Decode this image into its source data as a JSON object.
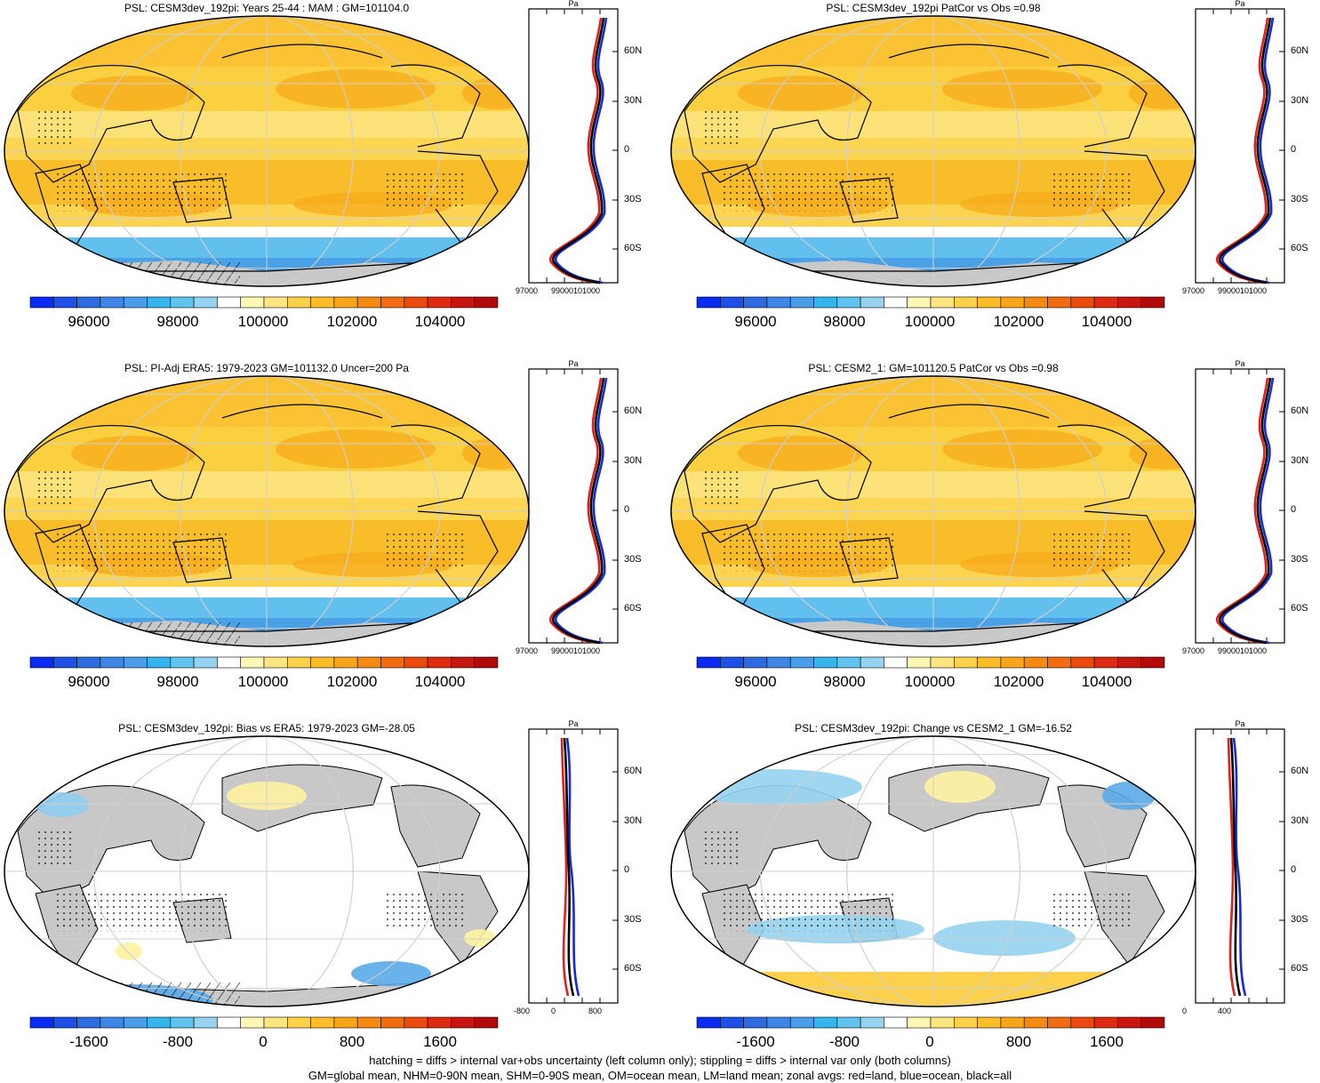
{
  "panels": [
    {
      "title": "PSL: CESM3dev_192pi: Years 25-44 : MAM : GM=101104.0",
      "kind": "abs",
      "hatch": true,
      "zonal_xticks": [
        "97000",
        "99000101000"
      ],
      "zonal_unit": "Pa"
    },
    {
      "title": "PSL: CESM3dev_192pi PatCor vs Obs =0.98",
      "kind": "abs",
      "hatch": false,
      "zonal_xticks": [
        "97000",
        "99000101000"
      ],
      "zonal_unit": "Pa"
    },
    {
      "title": "PSL: PI-Adj ERA5: 1979-2023 GM=101132.0 Uncer=200 Pa",
      "kind": "abs",
      "hatch": true,
      "zonal_xticks": [
        "97000",
        "99000101000"
      ],
      "zonal_unit": "Pa"
    },
    {
      "title": "PSL: CESM2_1: GM=101120.5 PatCor vs Obs =0.98",
      "kind": "abs",
      "hatch": false,
      "zonal_xticks": [
        "97000",
        "99000101000"
      ],
      "zonal_unit": "Pa"
    },
    {
      "title": "PSL: CESM3dev_192pi: Bias vs ERA5: 1979-2023 GM=-28.05",
      "kind": "bias",
      "hatch": true,
      "zonal_xticks": [
        "-800",
        "0",
        "800"
      ],
      "zonal_unit": "Pa"
    },
    {
      "title": "PSL: CESM3dev_192pi: Change vs CESM2_1 GM=-16.52",
      "kind": "change",
      "hatch": false,
      "zonal_xticks": [
        "0",
        "400"
      ],
      "zonal_unit": "Pa"
    }
  ],
  "lat_labels": [
    "60N",
    "30N",
    "0",
    "30S",
    "60S"
  ],
  "colorbars": {
    "abs_labels": [
      "96000",
      "98000",
      "100000",
      "102000",
      "104000"
    ],
    "diff_labels": [
      "-1600",
      "-800",
      "0",
      "800",
      "1600"
    ],
    "colors": [
      "#0a2bf0",
      "#1e4fe6",
      "#2f6be0",
      "#3f86e6",
      "#4a9ee9",
      "#35b5ec",
      "#61c4ee",
      "#95d3f0",
      "#ffffff",
      "#fff8b4",
      "#ffe680",
      "#ffd24a",
      "#fcbd28",
      "#f9a51a",
      "#f58a12",
      "#f16b10",
      "#ea4a0e",
      "#dd2a10",
      "#c6160f",
      "#b00a0a"
    ]
  },
  "colors": {
    "land": "#c8c8c8",
    "ocean_warm": "#fcd04a",
    "ocean_cool": "#4aa6e8",
    "land_line": "#e0201a",
    "ocean_line": "#1628e0",
    "all_line": "#000000"
  },
  "footer": {
    "line1": "hatching = diffs > internal var+obs uncertainty (left column only); stippling = diffs > internal var only (both columns)",
    "line2": "GM=global mean, NHM=0-90N mean, SHM=0-90S mean, OM=ocean mean, LM=land mean; zonal avgs: red=land, blue=ocean, black=all"
  },
  "chart_data": [
    {
      "type": "heatmap",
      "title": "PSL: CESM3dev_192pi: Years 25-44 : MAM : GM=101104.0",
      "colorbar_ticks": [
        96000,
        98000,
        100000,
        102000,
        104000
      ],
      "zonal_axis_ticks": [
        97000,
        99000,
        101000
      ],
      "lat_ticks": [
        "60N",
        "30N",
        "0",
        "30S",
        "60S"
      ]
    },
    {
      "type": "heatmap",
      "title": "PSL: CESM3dev_192pi PatCor vs Obs =0.98",
      "colorbar_ticks": [
        96000,
        98000,
        100000,
        102000,
        104000
      ]
    },
    {
      "type": "heatmap",
      "title": "PSL: PI-Adj ERA5: 1979-2023 GM=101132.0 Uncer=200 Pa",
      "colorbar_ticks": [
        96000,
        98000,
        100000,
        102000,
        104000
      ]
    },
    {
      "type": "heatmap",
      "title": "PSL: CESM2_1: GM=101120.5 PatCor vs Obs =0.98",
      "colorbar_ticks": [
        96000,
        98000,
        100000,
        102000,
        104000
      ]
    },
    {
      "type": "heatmap",
      "title": "PSL: CESM3dev_192pi: Bias vs ERA5: 1979-2023 GM=-28.05",
      "colorbar_ticks": [
        -1600,
        -800,
        0,
        800,
        1600
      ],
      "zonal_axis_ticks": [
        -800,
        0,
        800
      ]
    },
    {
      "type": "heatmap",
      "title": "PSL: CESM3dev_192pi: Change vs CESM2_1 GM=-16.52",
      "colorbar_ticks": [
        -1600,
        -800,
        0,
        800,
        1600
      ],
      "zonal_axis_ticks": [
        0,
        400
      ]
    }
  ]
}
